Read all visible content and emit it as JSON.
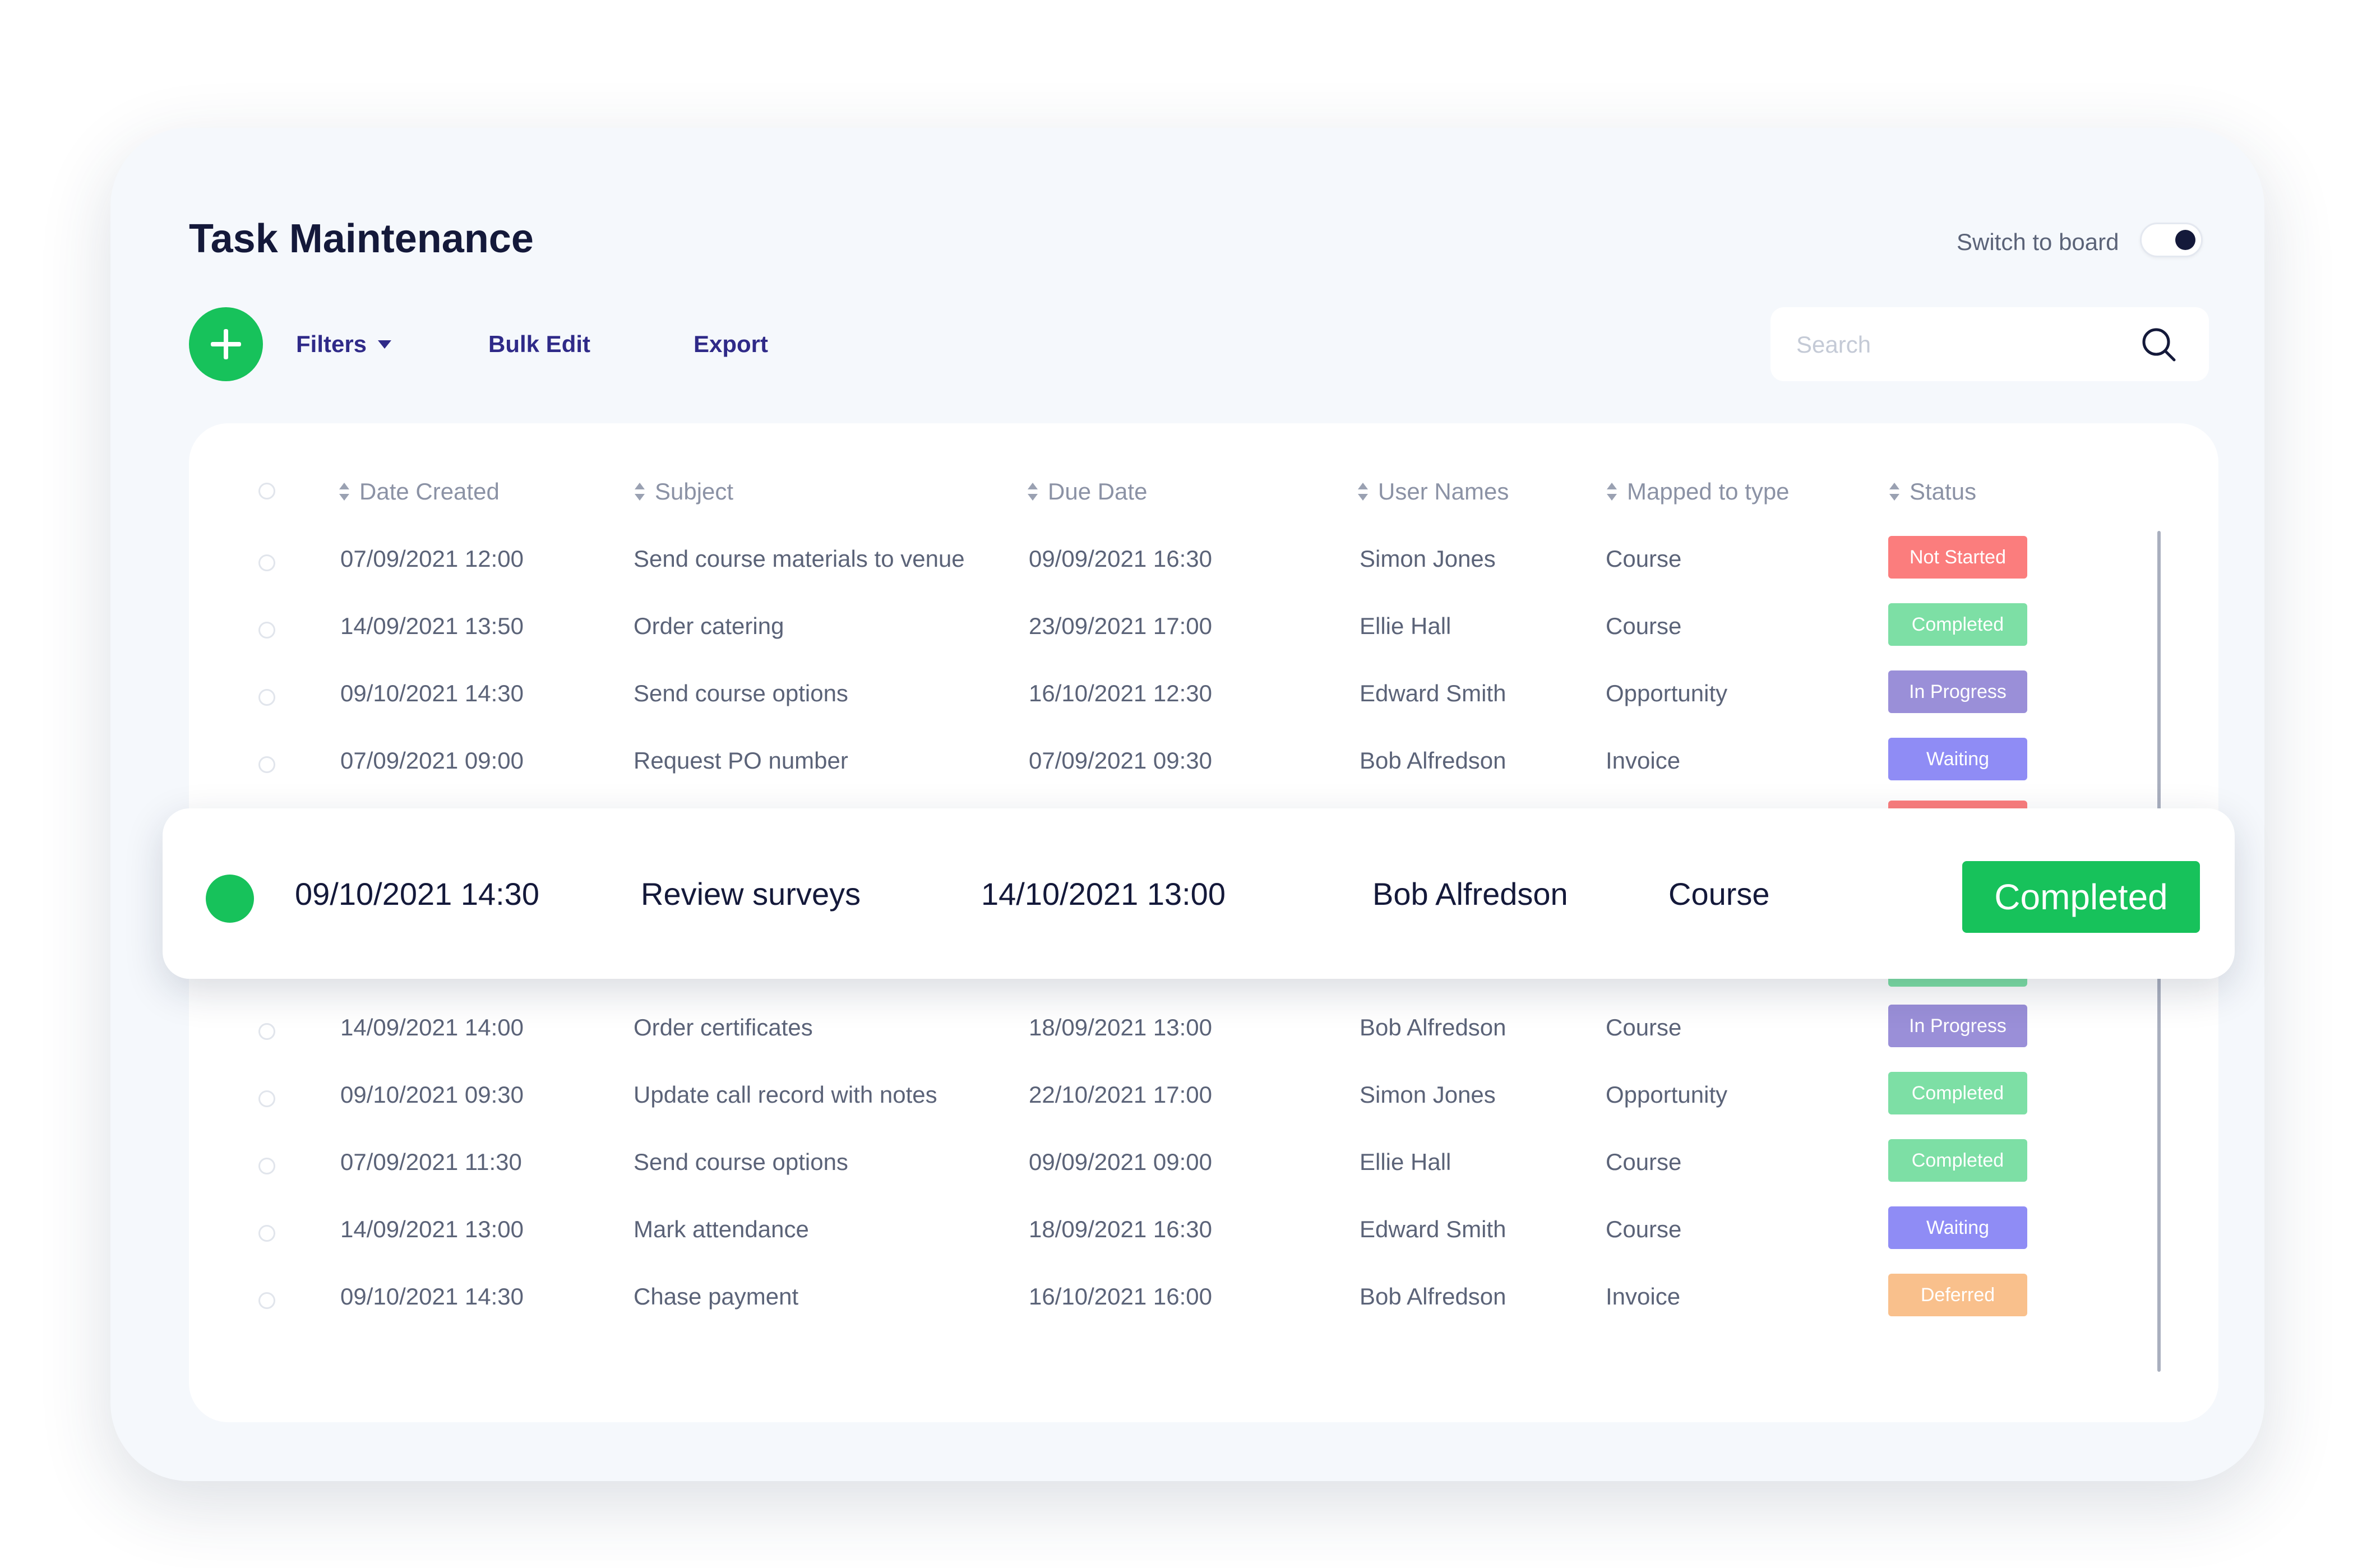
{
  "page": {
    "title": "Task Maintenance"
  },
  "switch": {
    "label": "Switch to board",
    "on": true
  },
  "toolbar": {
    "add_icon": "plus-icon",
    "filters_label": "Filters",
    "bulk_edit_label": "Bulk Edit",
    "export_label": "Export"
  },
  "search": {
    "placeholder": "Search",
    "value": "",
    "icon": "search-icon"
  },
  "table": {
    "columns": [
      "Date Created",
      "Subject",
      "Due Date",
      "User Names",
      "Mapped to type",
      "Status"
    ],
    "rows": [
      {
        "created": "07/09/2021  12:00",
        "subject": "Send course materials to venue",
        "due": "09/09/2021  16:30",
        "user": "Simon Jones",
        "type": "Course",
        "status": "Not Started",
        "status_color": "#fb7d7d"
      },
      {
        "created": "14/09/2021  13:50",
        "subject": "Order catering",
        "due": "23/09/2021  17:00",
        "user": "Ellie Hall",
        "type": "Course",
        "status": "Completed",
        "status_color": "#7ddfa5"
      },
      {
        "created": "09/10/2021  14:30",
        "subject": "Send course options",
        "due": "16/10/2021  12:30",
        "user": "Edward Smith",
        "type": "Opportunity",
        "status": "In Progress",
        "status_color": "#9a8fd8"
      },
      {
        "created": "07/09/2021  09:00",
        "subject": "Request PO number",
        "due": "07/09/2021  09:30",
        "user": "Bob Alfredson",
        "type": "Invoice",
        "status": "Waiting",
        "status_color": "#8f8cf5"
      },
      {
        "created": "14/09/2021  14:00",
        "subject": "Order certificates",
        "due": "18/09/2021  13:00",
        "user": "Bob Alfredson",
        "type": "Course",
        "status": "In Progress",
        "status_color": "#9a8fd8"
      },
      {
        "created": "09/10/2021  09:30",
        "subject": "Update call record with notes",
        "due": "22/10/2021  17:00",
        "user": "Simon Jones",
        "type": "Opportunity",
        "status": "Completed",
        "status_color": "#7ddfa5"
      },
      {
        "created": "07/09/2021  11:30",
        "subject": "Send course options",
        "due": "09/09/2021  09:00",
        "user": "Ellie Hall",
        "type": "Course",
        "status": "Completed",
        "status_color": "#7ddfa5"
      },
      {
        "created": "14/09/2021  13:00",
        "subject": "Mark attendance",
        "due": "18/09/2021  16:30",
        "user": "Edward Smith",
        "type": "Course",
        "status": "Waiting",
        "status_color": "#8f8cf5"
      },
      {
        "created": "09/10/2021  14:30",
        "subject": "Chase payment",
        "due": "16/10/2021  16:00",
        "user": "Bob Alfredson",
        "type": "Invoice",
        "status": "Deferred",
        "status_color": "#f9c08c"
      }
    ],
    "featured_row": {
      "created": "09/10/2021  14:30",
      "subject": "Review surveys",
      "due": "14/10/2021  13:00",
      "user": "Bob Alfredson",
      "type": "Course",
      "status": "Completed",
      "status_color": "#17c25b"
    }
  },
  "colors": {
    "accent_green": "#17c25b",
    "link_purple": "#2f2a88",
    "title_navy": "#14193a",
    "peek_red": "#fb7d7d",
    "peek_green": "#7ddfa5"
  }
}
